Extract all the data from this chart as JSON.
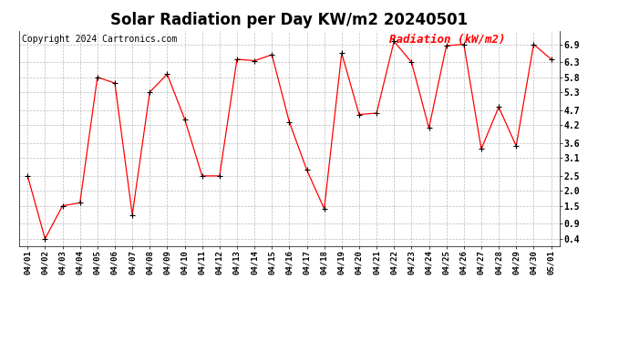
{
  "title": "Solar Radiation per Day KW/m2 20240501",
  "copyright": "Copyright 2024 Cartronics.com",
  "legend_label": "Radiation (kW/m2)",
  "dates": [
    "04/01",
    "04/02",
    "04/03",
    "04/04",
    "04/05",
    "04/06",
    "04/07",
    "04/08",
    "04/09",
    "04/10",
    "04/11",
    "04/12",
    "04/13",
    "04/14",
    "04/15",
    "04/16",
    "04/17",
    "04/18",
    "04/19",
    "04/20",
    "04/21",
    "04/22",
    "04/23",
    "04/24",
    "04/25",
    "04/26",
    "04/27",
    "04/28",
    "04/29",
    "04/30",
    "05/01"
  ],
  "values": [
    2.5,
    0.4,
    1.5,
    1.6,
    5.8,
    5.6,
    1.2,
    5.3,
    5.9,
    4.4,
    2.5,
    2.5,
    6.4,
    6.35,
    6.55,
    4.3,
    2.7,
    1.4,
    6.6,
    4.55,
    4.6,
    7.0,
    6.3,
    4.1,
    6.85,
    6.9,
    3.4,
    4.8,
    3.5,
    6.9,
    6.4
  ],
  "line_color": "#ff0000",
  "marker_color": "#000000",
  "background_color": "#ffffff",
  "grid_color": "#bbbbbb",
  "yticks": [
    0.4,
    0.9,
    1.5,
    2.0,
    2.5,
    3.1,
    3.6,
    4.2,
    4.7,
    5.3,
    5.8,
    6.3,
    6.9
  ],
  "ylim": [
    0.15,
    7.35
  ],
  "title_fontsize": 12,
  "copyright_fontsize": 7,
  "legend_fontsize": 9,
  "tick_fontsize": 6.5,
  "ytick_fontsize": 7,
  "legend_color": "#ff0000"
}
